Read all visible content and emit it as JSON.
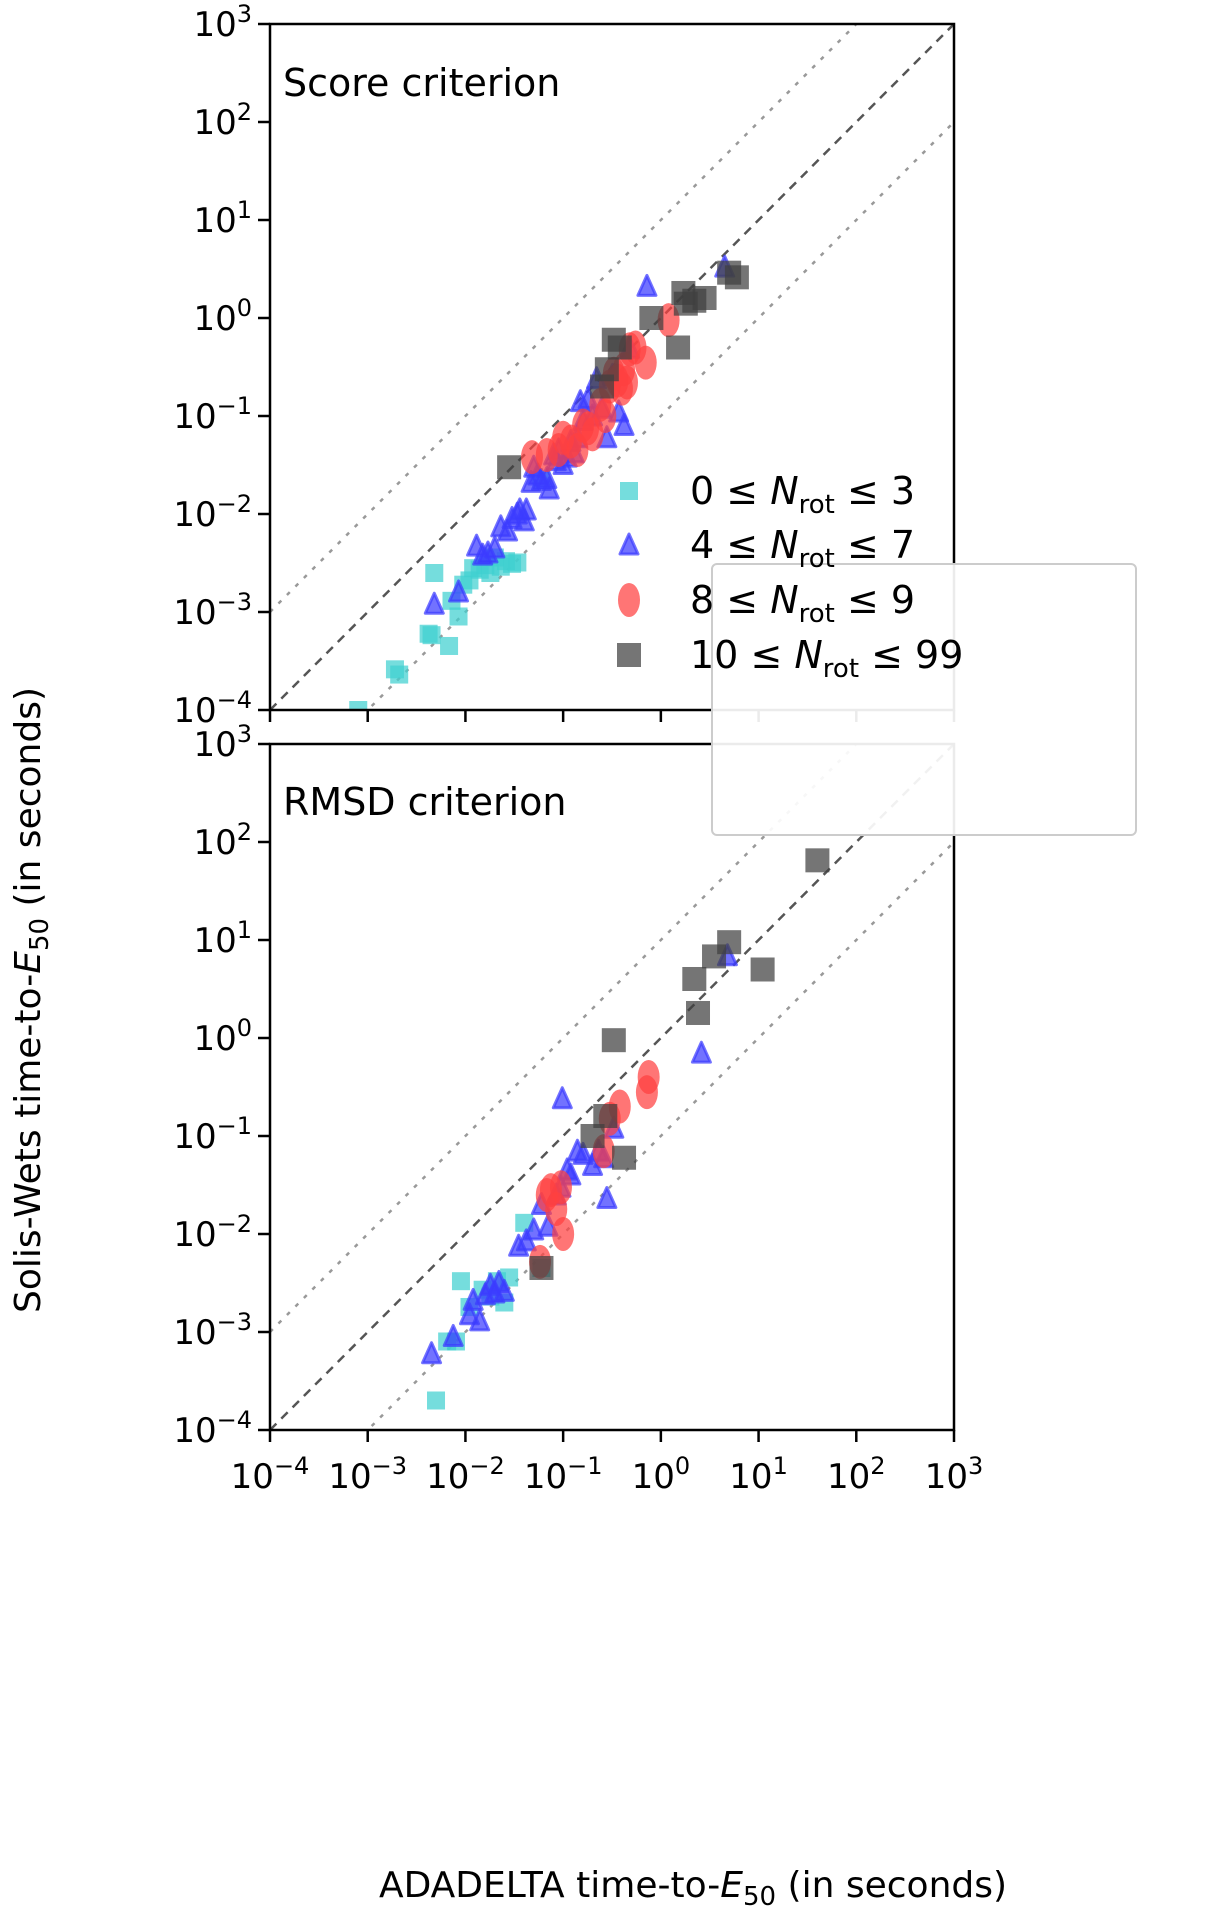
{
  "figure": {
    "xlabel": {
      "main": "ADADELTA time-to-",
      "sym": "E",
      "sub": "50",
      "tail": " (in seconds)"
    },
    "ylabel": {
      "main": "Solis-Wets time-to-",
      "sym": "E",
      "sub": "50",
      "tail": " (in seconds)"
    },
    "tick_base": "10",
    "tick_exponents": [
      "−4",
      "−3",
      "−2",
      "−1",
      "0",
      "1",
      "2",
      "3"
    ]
  },
  "legend": {
    "relation": "≤",
    "var": "N",
    "sub": "rot",
    "entries": [
      {
        "lo": "0",
        "hi": " 3",
        "color": "#40d0d0",
        "marker": "square-small"
      },
      {
        "lo": "4",
        "hi": " 7",
        "color": "#3c3cff",
        "marker": "triangle"
      },
      {
        "lo": "8",
        "hi": " 9",
        "color": "#ff4040",
        "marker": "octagon"
      },
      {
        "lo": "10",
        "hi": " 99",
        "color": "#404040",
        "marker": "square"
      }
    ]
  },
  "chart_data": [
    {
      "type": "scatter",
      "title": "Score criterion",
      "xscale": "log",
      "yscale": "log",
      "xlim": [
        0.0001,
        1000
      ],
      "ylim": [
        0.0001,
        1000
      ],
      "reference_lines": [
        {
          "label": "y = x",
          "style": "dashed",
          "color": "#555555",
          "factor": 1
        },
        {
          "label": "y = 10x",
          "style": "dotted",
          "color": "#999999",
          "factor": 10
        },
        {
          "label": "y = x/10",
          "style": "dotted",
          "color": "#999999",
          "factor": 0.1
        }
      ],
      "series": [
        {
          "name": "0 ≤ Nrot ≤ 3",
          "color": "#40d0d0",
          "marker": "square-small",
          "points": [
            [
              0.0008,
              0.0001
            ],
            [
              0.0019,
              0.00026
            ],
            [
              0.0021,
              0.00023
            ],
            [
              0.0042,
              0.0006
            ],
            [
              0.0045,
              0.00058
            ],
            [
              0.0048,
              0.0025
            ],
            [
              0.0068,
              0.00045
            ],
            [
              0.0072,
              0.0013
            ],
            [
              0.0085,
              0.0009
            ],
            [
              0.0095,
              0.0019
            ],
            [
              0.011,
              0.0021
            ],
            [
              0.012,
              0.0028
            ],
            [
              0.014,
              0.0027
            ],
            [
              0.016,
              0.003
            ],
            [
              0.018,
              0.0025
            ],
            [
              0.02,
              0.0036
            ],
            [
              0.023,
              0.0029
            ],
            [
              0.026,
              0.0033
            ],
            [
              0.03,
              0.0031
            ],
            [
              0.034,
              0.0032
            ],
            [
              0.06,
              0.022
            ]
          ]
        },
        {
          "name": "4 ≤ Nrot ≤ 7",
          "color": "#3c3cff",
          "marker": "triangle",
          "points": [
            [
              0.0048,
              0.0012
            ],
            [
              0.0085,
              0.0016
            ],
            [
              0.013,
              0.0047
            ],
            [
              0.015,
              0.0038
            ],
            [
              0.017,
              0.004
            ],
            [
              0.02,
              0.0045
            ],
            [
              0.023,
              0.0074
            ],
            [
              0.027,
              0.0067
            ],
            [
              0.03,
              0.009
            ],
            [
              0.034,
              0.01
            ],
            [
              0.036,
              0.011
            ],
            [
              0.04,
              0.0085
            ],
            [
              0.042,
              0.011
            ],
            [
              0.047,
              0.021
            ],
            [
              0.05,
              0.03
            ],
            [
              0.055,
              0.025
            ],
            [
              0.06,
              0.022
            ],
            [
              0.068,
              0.023
            ],
            [
              0.072,
              0.018
            ],
            [
              0.08,
              0.04
            ],
            [
              0.085,
              0.035
            ],
            [
              0.09,
              0.045
            ],
            [
              0.1,
              0.032
            ],
            [
              0.11,
              0.038
            ],
            [
              0.12,
              0.055
            ],
            [
              0.13,
              0.042
            ],
            [
              0.14,
              0.06
            ],
            [
              0.15,
              0.14
            ],
            [
              0.16,
              0.09
            ],
            [
              0.18,
              0.15
            ],
            [
              0.2,
              0.1
            ],
            [
              0.22,
              0.24
            ],
            [
              0.25,
              0.12
            ],
            [
              0.28,
              0.06
            ],
            [
              0.32,
              0.26
            ],
            [
              0.37,
              0.11
            ],
            [
              0.42,
              0.08
            ],
            [
              0.48,
              0.49
            ],
            [
              0.72,
              2.1
            ],
            [
              4.5,
              3.3
            ]
          ]
        },
        {
          "name": "8 ≤ Nrot ≤ 9",
          "color": "#ff4040",
          "marker": "octagon",
          "points": [
            [
              0.048,
              0.038
            ],
            [
              0.068,
              0.04
            ],
            [
              0.09,
              0.045
            ],
            [
              0.1,
              0.06
            ],
            [
              0.12,
              0.055
            ],
            [
              0.14,
              0.045
            ],
            [
              0.16,
              0.08
            ],
            [
              0.18,
              0.075
            ],
            [
              0.2,
              0.065
            ],
            [
              0.24,
              0.13
            ],
            [
              0.27,
              0.1
            ],
            [
              0.3,
              0.2
            ],
            [
              0.33,
              0.27
            ],
            [
              0.36,
              0.23
            ],
            [
              0.4,
              0.19
            ],
            [
              0.42,
              0.3
            ],
            [
              0.45,
              0.22
            ],
            [
              0.48,
              0.48
            ],
            [
              0.55,
              0.5
            ],
            [
              0.7,
              0.35
            ],
            [
              1.2,
              0.95
            ]
          ]
        },
        {
          "name": "10 ≤ Nrot ≤ 99",
          "color": "#404040",
          "marker": "square",
          "points": [
            [
              0.028,
              0.03
            ],
            [
              0.25,
              0.2
            ],
            [
              0.28,
              0.3
            ],
            [
              0.33,
              0.6
            ],
            [
              0.38,
              0.5
            ],
            [
              0.8,
              1.0
            ],
            [
              1.5,
              0.5
            ],
            [
              1.7,
              1.8
            ],
            [
              1.8,
              1.4
            ],
            [
              2.2,
              1.5
            ],
            [
              2.8,
              1.6
            ],
            [
              5,
              2.9
            ],
            [
              6,
              2.6
            ]
          ]
        }
      ]
    },
    {
      "type": "scatter",
      "title": "RMSD criterion",
      "xscale": "log",
      "yscale": "log",
      "xlim": [
        0.0001,
        1000
      ],
      "ylim": [
        0.0001,
        1000
      ],
      "reference_lines": [
        {
          "label": "y = x",
          "style": "dashed",
          "color": "#555555",
          "factor": 1
        },
        {
          "label": "y = 10x",
          "style": "dotted",
          "color": "#999999",
          "factor": 10
        },
        {
          "label": "y = x/10",
          "style": "dotted",
          "color": "#999999",
          "factor": 0.1
        }
      ],
      "series": [
        {
          "name": "0 ≤ Nrot ≤ 3",
          "color": "#40d0d0",
          "marker": "square-small",
          "points": [
            [
              0.005,
              0.0002
            ],
            [
              0.0065,
              0.0008
            ],
            [
              0.008,
              0.0008
            ],
            [
              0.009,
              0.0033
            ],
            [
              0.011,
              0.0018
            ],
            [
              0.015,
              0.0027
            ],
            [
              0.018,
              0.0023
            ],
            [
              0.021,
              0.0033
            ],
            [
              0.025,
              0.002
            ],
            [
              0.028,
              0.0036
            ],
            [
              0.04,
              0.013
            ],
            [
              0.06,
              0.0045
            ]
          ]
        },
        {
          "name": "4 ≤ Nrot ≤ 7",
          "color": "#3c3cff",
          "marker": "triangle",
          "points": [
            [
              0.0045,
              0.0006
            ],
            [
              0.0075,
              0.0009
            ],
            [
              0.011,
              0.0015
            ],
            [
              0.012,
              0.0021
            ],
            [
              0.014,
              0.0013
            ],
            [
              0.016,
              0.0024
            ],
            [
              0.018,
              0.003
            ],
            [
              0.02,
              0.0025
            ],
            [
              0.022,
              0.0032
            ],
            [
              0.025,
              0.0026
            ],
            [
              0.035,
              0.0075
            ],
            [
              0.042,
              0.0085
            ],
            [
              0.05,
              0.011
            ],
            [
              0.06,
              0.02
            ],
            [
              0.07,
              0.012
            ],
            [
              0.085,
              0.025
            ],
            [
              0.095,
              0.03
            ],
            [
              0.098,
              0.24
            ],
            [
              0.11,
              0.045
            ],
            [
              0.12,
              0.04
            ],
            [
              0.14,
              0.07
            ],
            [
              0.16,
              0.065
            ],
            [
              0.2,
              0.05
            ],
            [
              0.23,
              0.07
            ],
            [
              0.26,
              0.06
            ],
            [
              0.28,
              0.023
            ],
            [
              0.33,
              0.12
            ],
            [
              2.6,
              0.7
            ],
            [
              4.8,
              6.9
            ]
          ]
        },
        {
          "name": "8 ≤ Nrot ≤ 9",
          "color": "#ff4040",
          "marker": "octagon",
          "points": [
            [
              0.058,
              0.0052
            ],
            [
              0.068,
              0.025
            ],
            [
              0.075,
              0.028
            ],
            [
              0.085,
              0.018
            ],
            [
              0.095,
              0.03
            ],
            [
              0.1,
              0.01
            ],
            [
              0.26,
              0.07
            ],
            [
              0.3,
              0.15
            ],
            [
              0.38,
              0.2
            ],
            [
              0.72,
              0.28
            ],
            [
              0.75,
              0.4
            ]
          ]
        },
        {
          "name": "10 ≤ Nrot ≤ 99",
          "color": "#404040",
          "marker": "square",
          "points": [
            [
              0.06,
              0.0045
            ],
            [
              0.2,
              0.1
            ],
            [
              0.27,
              0.16
            ],
            [
              0.33,
              0.95
            ],
            [
              0.42,
              0.06
            ],
            [
              2.2,
              4
            ],
            [
              2.4,
              1.8
            ],
            [
              3.5,
              6.8
            ],
            [
              5,
              9.5
            ],
            [
              11,
              5
            ],
            [
              40,
              65
            ]
          ]
        }
      ]
    }
  ]
}
